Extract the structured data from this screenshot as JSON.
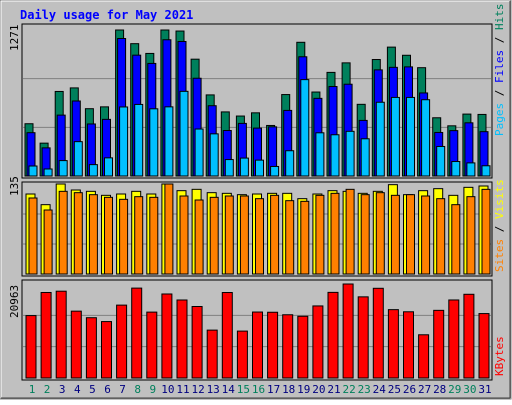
{
  "chart_data": [
    {
      "type": "bar",
      "title": "Daily usage for May 2021",
      "categories": [
        "1",
        "2",
        "3",
        "4",
        "5",
        "6",
        "7",
        "8",
        "9",
        "10",
        "11",
        "12",
        "13",
        "14",
        "15",
        "16",
        "17",
        "18",
        "19",
        "20",
        "21",
        "22",
        "23",
        "24",
        "25",
        "26",
        "27",
        "28",
        "29",
        "30",
        "31"
      ],
      "weekend_days": [
        "1",
        "2",
        "8",
        "9",
        "15",
        "16",
        "22",
        "23",
        "29",
        "30"
      ],
      "ylabel_parts": [
        "Pages",
        "Files",
        "Hits"
      ],
      "ylim": [
        0,
        1271
      ],
      "ymax_label": "1271",
      "series": [
        {
          "name": "Hits",
          "color": "#00805c",
          "values": [
            455,
            286,
            736,
            767,
            586,
            602,
            1271,
            1152,
            1067,
            1271,
            1262,
            1017,
            706,
            558,
            522,
            550,
            440,
            709,
            1164,
            731,
            902,
            985,
            624,
            1014,
            1122,
            1051,
            943,
            507,
            437,
            539,
            536
          ]
        },
        {
          "name": "Files",
          "color": "#0000ff",
          "values": [
            377,
            245,
            530,
            653,
            453,
            493,
            1197,
            1052,
            980,
            1186,
            1171,
            851,
            612,
            396,
            458,
            417,
            428,
            571,
            1038,
            676,
            779,
            799,
            484,
            924,
            946,
            950,
            723,
            379,
            395,
            463,
            386
          ]
        },
        {
          "name": "Pages",
          "color": "#00c0ff",
          "values": [
            87,
            61,
            134,
            299,
            99,
            158,
            601,
            623,
            585,
            602,
            737,
            409,
            367,
            143,
            156,
            138,
            83,
            220,
            839,
            376,
            359,
            389,
            324,
            642,
            684,
            684,
            664,
            257,
            126,
            114,
            89
          ]
        }
      ]
    },
    {
      "type": "bar",
      "ylabel_parts": [
        "Sites",
        "Visits"
      ],
      "ylim": [
        0,
        135
      ],
      "ymax_label": "135",
      "series": [
        {
          "name": "Visits",
          "color": "#ffff00",
          "values": [
            120,
            104,
            135,
            126,
            124,
            118,
            120,
            124,
            120,
            135,
            125,
            127,
            122,
            121,
            119,
            120,
            121,
            121,
            113,
            120,
            125,
            124,
            121,
            124,
            134,
            119,
            125,
            128,
            118,
            130,
            132
          ]
        },
        {
          "name": "Sites",
          "color": "#ff8000",
          "values": [
            114,
            96,
            124,
            122,
            119,
            115,
            112,
            116,
            115,
            135,
            117,
            111,
            115,
            117,
            117,
            113,
            118,
            110,
            109,
            118,
            121,
            127,
            119,
            122,
            118,
            119,
            117,
            113,
            104,
            116,
            127
          ]
        }
      ]
    },
    {
      "type": "bar",
      "ylabel_parts": [
        "KBytes"
      ],
      "ylim": [
        0,
        20963
      ],
      "ymax_label": "20963",
      "series": [
        {
          "name": "KBytes",
          "color": "#ff0000",
          "values": [
            13920,
            19072,
            19358,
            14908,
            13446,
            12584,
            16254,
            20048,
            14695,
            18736,
            17397,
            15945,
            10678,
            19065,
            10460,
            14711,
            14662,
            14105,
            13767,
            16072,
            19097,
            20963,
            18099,
            20006,
            15245,
            14768,
            9640,
            15087,
            17402,
            18669,
            14368
          ]
        }
      ]
    }
  ]
}
